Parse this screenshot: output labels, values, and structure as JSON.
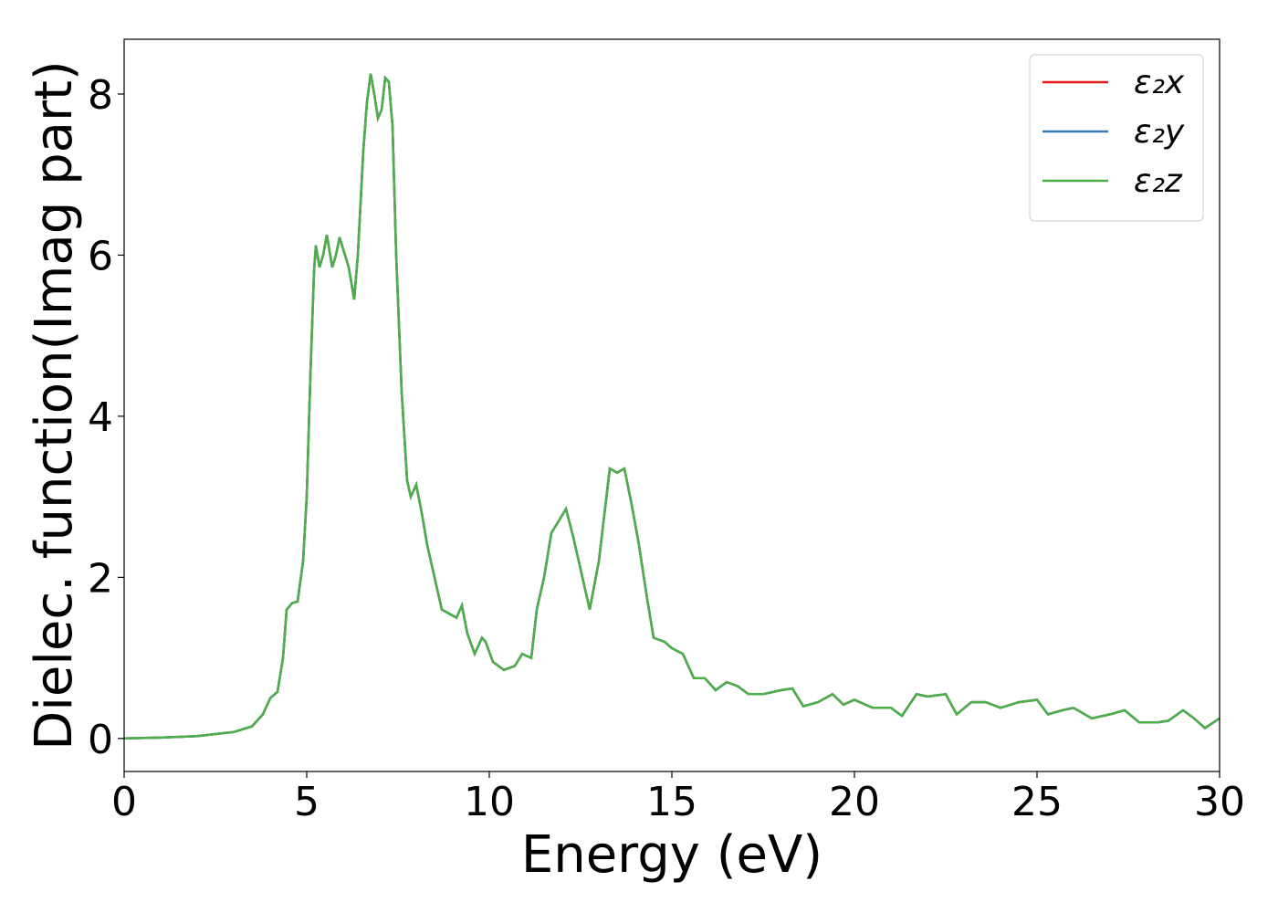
{
  "chart_data": {
    "type": "line",
    "xlabel": "Energy (eV)",
    "ylabel": "Dielec. function(Imag part)",
    "xlim": [
      0,
      30
    ],
    "ylim": [
      -0.41,
      8.68
    ],
    "xticks": [
      0,
      5,
      10,
      15,
      20,
      25,
      30
    ],
    "yticks": [
      0,
      2,
      4,
      6,
      8
    ],
    "legend": "upper right",
    "x": [
      0,
      1,
      2,
      3,
      3.5,
      3.8,
      4.0,
      4.2,
      4.35,
      4.45,
      4.6,
      4.75,
      4.9,
      5.0,
      5.1,
      5.2,
      5.25,
      5.35,
      5.45,
      5.55,
      5.7,
      5.8,
      5.9,
      6.05,
      6.15,
      6.3,
      6.4,
      6.55,
      6.65,
      6.75,
      6.85,
      6.95,
      7.05,
      7.15,
      7.25,
      7.35,
      7.45,
      7.6,
      7.75,
      7.85,
      8.0,
      8.15,
      8.3,
      8.5,
      8.7,
      8.9,
      9.1,
      9.25,
      9.4,
      9.6,
      9.8,
      9.9,
      10.1,
      10.4,
      10.7,
      10.9,
      11.15,
      11.3,
      11.5,
      11.7,
      11.9,
      12.1,
      12.3,
      12.5,
      12.75,
      13.0,
      13.3,
      13.5,
      13.7,
      13.9,
      14.1,
      14.3,
      14.5,
      14.8,
      15.0,
      15.3,
      15.6,
      15.9,
      16.2,
      16.5,
      16.8,
      17.1,
      17.5,
      18.0,
      18.3,
      18.6,
      19.0,
      19.4,
      19.7,
      20.0,
      20.5,
      21.0,
      21.3,
      21.7,
      22.0,
      22.5,
      22.8,
      23.2,
      23.6,
      24.0,
      24.5,
      25.0,
      25.3,
      25.7,
      26.0,
      26.5,
      27.0,
      27.4,
      27.8,
      28.3,
      28.6,
      29.0,
      29.3,
      29.6,
      30.0
    ],
    "series": [
      {
        "name": "ε₂x",
        "color": "#e41a1c",
        "values": [
          0,
          0.01,
          0.03,
          0.08,
          0.15,
          0.3,
          0.5,
          0.58,
          1.0,
          1.6,
          1.68,
          1.7,
          2.2,
          3.0,
          4.5,
          5.8,
          6.12,
          5.85,
          6.0,
          6.25,
          5.85,
          6.0,
          6.22,
          6.0,
          5.85,
          5.45,
          6.0,
          7.3,
          7.9,
          8.25,
          8.0,
          7.7,
          7.8,
          8.2,
          8.15,
          7.6,
          6.0,
          4.3,
          3.2,
          3.0,
          3.15,
          2.8,
          2.4,
          2.0,
          1.6,
          1.55,
          1.5,
          1.65,
          1.3,
          1.05,
          1.25,
          1.2,
          0.95,
          0.85,
          0.9,
          1.05,
          1.0,
          1.6,
          2.0,
          2.55,
          2.7,
          2.85,
          2.5,
          2.1,
          1.6,
          2.2,
          3.35,
          3.3,
          3.35,
          2.9,
          2.4,
          1.8,
          1.25,
          1.2,
          1.12,
          1.05,
          0.75,
          0.75,
          0.6,
          0.7,
          0.65,
          0.55,
          0.55,
          0.6,
          0.62,
          0.4,
          0.45,
          0.55,
          0.42,
          0.48,
          0.38,
          0.38,
          0.28,
          0.55,
          0.52,
          0.55,
          0.3,
          0.45,
          0.45,
          0.38,
          0.45,
          0.48,
          0.3,
          0.35,
          0.38,
          0.25,
          0.3,
          0.35,
          0.2,
          0.2,
          0.22,
          0.35,
          0.25,
          0.13,
          0.25
        ]
      },
      {
        "name": "ε₂y",
        "color": "#377eb8",
        "values": [
          0,
          0.01,
          0.03,
          0.08,
          0.15,
          0.3,
          0.5,
          0.58,
          1.0,
          1.6,
          1.68,
          1.7,
          2.2,
          3.0,
          4.5,
          5.8,
          6.12,
          5.85,
          6.0,
          6.25,
          5.85,
          6.0,
          6.22,
          6.0,
          5.85,
          5.45,
          6.0,
          7.3,
          7.9,
          8.25,
          8.0,
          7.7,
          7.8,
          8.2,
          8.15,
          7.6,
          6.0,
          4.3,
          3.2,
          3.0,
          3.15,
          2.8,
          2.4,
          2.0,
          1.6,
          1.55,
          1.5,
          1.65,
          1.3,
          1.05,
          1.25,
          1.2,
          0.95,
          0.85,
          0.9,
          1.05,
          1.0,
          1.6,
          2.0,
          2.55,
          2.7,
          2.85,
          2.5,
          2.1,
          1.6,
          2.2,
          3.35,
          3.3,
          3.35,
          2.9,
          2.4,
          1.8,
          1.25,
          1.2,
          1.12,
          1.05,
          0.75,
          0.75,
          0.6,
          0.7,
          0.65,
          0.55,
          0.55,
          0.6,
          0.62,
          0.4,
          0.45,
          0.55,
          0.42,
          0.48,
          0.38,
          0.38,
          0.28,
          0.55,
          0.52,
          0.55,
          0.3,
          0.45,
          0.45,
          0.38,
          0.45,
          0.48,
          0.3,
          0.35,
          0.38,
          0.25,
          0.3,
          0.35,
          0.2,
          0.2,
          0.22,
          0.35,
          0.25,
          0.13,
          0.25
        ]
      },
      {
        "name": "ε₂z",
        "color": "#4daf4a",
        "values": [
          0,
          0.01,
          0.03,
          0.08,
          0.15,
          0.3,
          0.5,
          0.58,
          1.0,
          1.6,
          1.68,
          1.7,
          2.2,
          3.0,
          4.5,
          5.8,
          6.12,
          5.85,
          6.0,
          6.25,
          5.85,
          6.0,
          6.22,
          6.0,
          5.85,
          5.45,
          6.0,
          7.3,
          7.9,
          8.25,
          8.0,
          7.7,
          7.8,
          8.2,
          8.15,
          7.6,
          6.0,
          4.3,
          3.2,
          3.0,
          3.15,
          2.8,
          2.4,
          2.0,
          1.6,
          1.55,
          1.5,
          1.65,
          1.3,
          1.05,
          1.25,
          1.2,
          0.95,
          0.85,
          0.9,
          1.05,
          1.0,
          1.6,
          2.0,
          2.55,
          2.7,
          2.85,
          2.5,
          2.1,
          1.6,
          2.2,
          3.35,
          3.3,
          3.35,
          2.9,
          2.4,
          1.8,
          1.25,
          1.2,
          1.12,
          1.05,
          0.75,
          0.75,
          0.6,
          0.7,
          0.65,
          0.55,
          0.55,
          0.6,
          0.62,
          0.4,
          0.45,
          0.55,
          0.42,
          0.48,
          0.38,
          0.38,
          0.28,
          0.55,
          0.52,
          0.55,
          0.3,
          0.45,
          0.45,
          0.38,
          0.45,
          0.48,
          0.3,
          0.35,
          0.38,
          0.25,
          0.3,
          0.35,
          0.2,
          0.2,
          0.22,
          0.35,
          0.25,
          0.13,
          0.25
        ]
      }
    ]
  }
}
